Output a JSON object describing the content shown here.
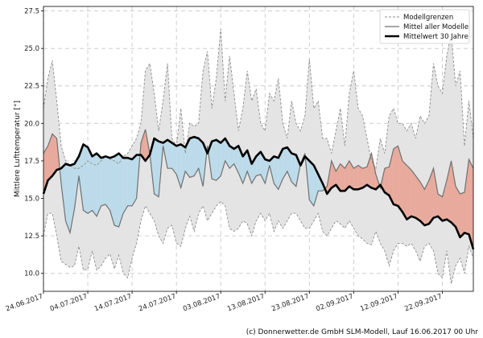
{
  "chart_data": {
    "type": "area",
    "ylabel": "Mittlere Lufttemperatur [°]",
    "ylim": [
      8.8,
      27.8
    ],
    "yticks": [
      10.0,
      12.5,
      15.0,
      17.5,
      20.0,
      22.5,
      25.0,
      27.5
    ],
    "ytick_labels": [
      "10.0",
      "12.5",
      "15.0",
      "17.5",
      "20.0",
      "22.5",
      "25.0",
      "27.5"
    ],
    "x_domain_days": [
      0,
      97
    ],
    "xticks_days": [
      0,
      10,
      20,
      30,
      40,
      50,
      60,
      70,
      80,
      90
    ],
    "xtick_labels": [
      "24.06.2017",
      "04.07.2017",
      "14.07.2017",
      "24.07.2017",
      "03.08.2017",
      "13.08.2017",
      "23.08.2017",
      "02.09.2017",
      "12.09.2017",
      "22.09.2017"
    ],
    "grid": true,
    "legend_position": "top-right",
    "legend": [
      {
        "label": "Modellgrenzen",
        "style": "dashed-gray"
      },
      {
        "label": "Mittel aller Modelle",
        "style": "solid-gray"
      },
      {
        "label": "Mittelwert 30 Jahre",
        "style": "solid-black-thick"
      }
    ],
    "colors": {
      "envelope": "#e4e4e4",
      "bound_line": "#8c8c8c",
      "ensemble_mean": "#707070",
      "climate_mean": "#000000",
      "warmer_fill": "#e8aa9c",
      "colder_fill": "#bcdbea"
    },
    "series": [
      {
        "name": "Modellgrenzen (oben)",
        "x": [
          0,
          1,
          2,
          3,
          4,
          5,
          6,
          7,
          8,
          9,
          10,
          11,
          12,
          13,
          14,
          15,
          16,
          17,
          18,
          19,
          20,
          21,
          22,
          23,
          24,
          25,
          26,
          27,
          28,
          29,
          30,
          31,
          32,
          33,
          34,
          35,
          36,
          37,
          38,
          39,
          40,
          41,
          42,
          43,
          44,
          45,
          46,
          47,
          48,
          49,
          50,
          51,
          52,
          53,
          54,
          55,
          56,
          57,
          58,
          59,
          60,
          61,
          62,
          63,
          64,
          65,
          66,
          67,
          68,
          69,
          70,
          71,
          72,
          73,
          74,
          75,
          76,
          77,
          78,
          79,
          80,
          81,
          82,
          83,
          84,
          85,
          86,
          87,
          88,
          89,
          90,
          91,
          92,
          93,
          94,
          95,
          96,
          97
        ],
        "values": [
          21.0,
          23.0,
          24.2,
          21.5,
          18.5,
          17.5,
          17.2,
          17.0,
          17.0,
          17.2,
          17.5,
          17.3,
          17.2,
          17.5,
          17.8,
          17.6,
          17.5,
          17.3,
          17.8,
          18.0,
          18.5,
          19.0,
          20.0,
          23.5,
          24.0,
          22.0,
          19.5,
          21.5,
          24.0,
          19.0,
          18.5,
          21.0,
          18.0,
          20.0,
          19.8,
          20.0,
          23.5,
          24.8,
          21.0,
          23.0,
          26.3,
          21.5,
          24.5,
          22.0,
          19.5,
          21.0,
          23.5,
          21.5,
          22.3,
          20.0,
          19.5,
          22.0,
          21.5,
          23.0,
          20.0,
          19.0,
          21.5,
          20.0,
          19.5,
          20.5,
          24.3,
          21.0,
          21.5,
          19.0,
          19.0,
          18.0,
          19.5,
          21.0,
          18.5,
          22.0,
          23.5,
          21.0,
          20.5,
          19.0,
          17.5,
          17.0,
          19.0,
          18.0,
          20.5,
          21.0,
          20.0,
          20.0,
          19.5,
          20.0,
          19.0,
          20.5,
          20.0,
          20.5,
          24.0,
          22.5,
          22.0,
          24.5,
          26.0,
          22.5,
          23.5,
          18.5,
          21.5,
          19.0
        ]
      },
      {
        "name": "Modellgrenzen (unten)",
        "x": [
          0,
          1,
          2,
          3,
          4,
          5,
          6,
          7,
          8,
          9,
          10,
          11,
          12,
          13,
          14,
          15,
          16,
          17,
          18,
          19,
          20,
          21,
          22,
          23,
          24,
          25,
          26,
          27,
          28,
          29,
          30,
          31,
          32,
          33,
          34,
          35,
          36,
          37,
          38,
          39,
          40,
          41,
          42,
          43,
          44,
          45,
          46,
          47,
          48,
          49,
          50,
          51,
          52,
          53,
          54,
          55,
          56,
          57,
          58,
          59,
          60,
          61,
          62,
          63,
          64,
          65,
          66,
          67,
          68,
          69,
          70,
          71,
          72,
          73,
          74,
          75,
          76,
          77,
          78,
          79,
          80,
          81,
          82,
          83,
          84,
          85,
          86,
          87,
          88,
          89,
          90,
          91,
          92,
          93,
          94,
          95,
          96,
          97
        ],
        "values": [
          12.5,
          14.0,
          14.0,
          12.5,
          10.8,
          10.6,
          10.4,
          10.5,
          11.8,
          10.2,
          10.3,
          11.5,
          10.2,
          10.5,
          11.0,
          11.3,
          10.3,
          11.2,
          10.0,
          9.7,
          11.0,
          12.0,
          13.5,
          14.5,
          14.0,
          13.5,
          12.5,
          12.0,
          13.0,
          13.2,
          12.0,
          11.8,
          13.0,
          13.8,
          12.8,
          14.0,
          14.5,
          13.5,
          14.0,
          14.5,
          14.8,
          14.5,
          13.0,
          12.8,
          13.0,
          13.5,
          13.3,
          12.5,
          13.5,
          14.0,
          13.5,
          14.0,
          12.8,
          13.5,
          13.0,
          13.5,
          14.0,
          14.0,
          13.5,
          13.0,
          13.0,
          13.5,
          14.0,
          12.8,
          12.5,
          13.0,
          13.5,
          13.3,
          13.0,
          13.5,
          13.0,
          12.5,
          12.3,
          12.0,
          11.9,
          12.8,
          12.0,
          11.5,
          10.5,
          11.5,
          12.0,
          12.0,
          11.8,
          12.0,
          11.5,
          10.8,
          11.8,
          12.0,
          11.5,
          10.0,
          9.7,
          11.5,
          9.3,
          10.5,
          11.0,
          10.0,
          11.8,
          11.0
        ]
      },
      {
        "name": "Mittel aller Modelle",
        "x": [
          0,
          1,
          2,
          3,
          4,
          5,
          6,
          7,
          8,
          9,
          10,
          11,
          12,
          13,
          14,
          15,
          16,
          17,
          18,
          19,
          20,
          21,
          22,
          23,
          24,
          25,
          26,
          27,
          28,
          29,
          30,
          31,
          32,
          33,
          34,
          35,
          36,
          37,
          38,
          39,
          40,
          41,
          42,
          43,
          44,
          45,
          46,
          47,
          48,
          49,
          50,
          51,
          52,
          53,
          54,
          55,
          56,
          57,
          58,
          59,
          60,
          61,
          62,
          63,
          64,
          65,
          66,
          67,
          68,
          69,
          70,
          71,
          72,
          73,
          74,
          75,
          76,
          77,
          78,
          79,
          80,
          81,
          82,
          83,
          84,
          85,
          86,
          87,
          88,
          89,
          90,
          91,
          92,
          93,
          94,
          95,
          96,
          97
        ],
        "values": [
          18.0,
          18.5,
          19.3,
          19.0,
          16.0,
          13.5,
          12.7,
          14.3,
          16.5,
          14.2,
          14.0,
          14.2,
          13.8,
          14.5,
          14.6,
          14.2,
          13.2,
          13.1,
          14.0,
          14.5,
          14.5,
          15.0,
          18.7,
          19.6,
          18.0,
          15.3,
          15.1,
          18.5,
          17.0,
          17.0,
          16.6,
          15.7,
          16.8,
          16.4,
          16.5,
          17.0,
          15.8,
          18.5,
          16.3,
          16.2,
          16.5,
          17.5,
          17.0,
          17.3,
          16.7,
          16.0,
          16.8,
          16.0,
          16.5,
          16.6,
          16.0,
          17.2,
          16.0,
          15.6,
          16.3,
          16.8,
          16.1,
          15.8,
          17.3,
          18.0,
          14.9,
          14.5,
          15.5,
          15.5,
          15.8,
          17.5,
          16.8,
          17.3,
          17.0,
          17.5,
          17.0,
          17.2,
          17.0,
          17.1,
          18.0,
          16.6,
          15.7,
          17.0,
          17.1,
          18.3,
          18.5,
          17.5,
          17.2,
          16.9,
          16.5,
          16.1,
          15.6,
          16.2,
          17.0,
          15.3,
          15.1,
          16.2,
          17.5,
          15.8,
          15.3,
          15.4,
          17.6,
          17.0
        ]
      },
      {
        "name": "Mittelwert 30 Jahre",
        "x": [
          0,
          1,
          2,
          3,
          4,
          5,
          6,
          7,
          8,
          9,
          10,
          11,
          12,
          13,
          14,
          15,
          16,
          17,
          18,
          19,
          20,
          21,
          22,
          23,
          24,
          25,
          26,
          27,
          28,
          29,
          30,
          31,
          32,
          33,
          34,
          35,
          36,
          37,
          38,
          39,
          40,
          41,
          42,
          43,
          44,
          45,
          46,
          47,
          48,
          49,
          50,
          51,
          52,
          53,
          54,
          55,
          56,
          57,
          58,
          59,
          60,
          61,
          62,
          63,
          64,
          65,
          66,
          67,
          68,
          69,
          70,
          71,
          72,
          73,
          74,
          75,
          76,
          77,
          78,
          79,
          80,
          81,
          82,
          83,
          84,
          85,
          86,
          87,
          88,
          89,
          90,
          91,
          92,
          93,
          94,
          95,
          96,
          97
        ],
        "values": [
          15.3,
          16.2,
          16.5,
          16.9,
          17.0,
          17.3,
          17.2,
          17.3,
          17.8,
          18.6,
          18.4,
          17.8,
          18.0,
          17.7,
          17.8,
          17.7,
          17.8,
          18.0,
          17.7,
          17.7,
          17.6,
          17.9,
          17.9,
          17.5,
          17.9,
          19.0,
          18.8,
          18.7,
          18.9,
          18.7,
          18.5,
          18.6,
          18.4,
          19.0,
          19.1,
          19.0,
          18.7,
          18.0,
          18.8,
          18.9,
          18.7,
          19.0,
          18.5,
          18.3,
          18.5,
          17.8,
          18.2,
          17.3,
          17.8,
          18.1,
          17.6,
          17.5,
          17.8,
          17.7,
          18.3,
          18.4,
          18.0,
          17.9,
          17.2,
          17.8,
          17.5,
          17.2,
          16.6,
          16.0,
          15.3,
          15.7,
          15.9,
          15.5,
          15.5,
          15.8,
          15.6,
          15.6,
          15.7,
          15.9,
          15.7,
          15.6,
          15.9,
          15.4,
          15.2,
          14.6,
          14.5,
          14.1,
          13.6,
          13.8,
          13.7,
          13.5,
          13.2,
          13.3,
          13.7,
          13.8,
          13.5,
          13.6,
          13.4,
          13.1,
          12.4,
          12.7,
          12.6,
          11.6
        ]
      }
    ]
  },
  "credit": "(c) Donnerwetter.de GmbH SLM-Modell, Lauf 16.06.2017 00 Uhr"
}
